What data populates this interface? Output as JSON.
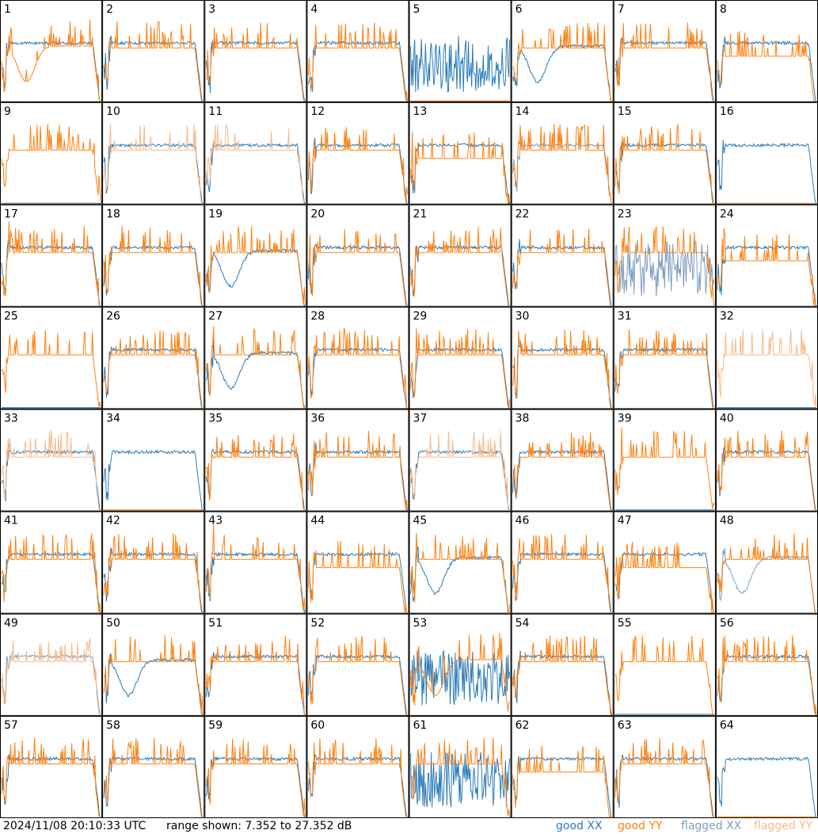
{
  "chart_data": {
    "type": "line",
    "layout_description": "8x8 grid of small spectrum panels, one per antenna/tile numbered 1-64",
    "range": {
      "min_db": 7.352,
      "max_db": 27.352
    },
    "footer": {
      "timestamp": "2024/11/08 20:10:33 UTC",
      "range_text": "range shown: 7.352 to 27.352 dB"
    },
    "legend": [
      {
        "label": "good XX",
        "color": "#2b7bb9"
      },
      {
        "label": "good YY",
        "color": "#ff7f0e"
      },
      {
        "label": "flagged XX",
        "color": "#7f9fbf"
      },
      {
        "label": "flagged YY",
        "color": "#f8b98a"
      }
    ],
    "colors": {
      "good_xx": "#2b7bb9",
      "good_yy": "#ff7f0e",
      "flagged_xx": "#7f9fbf",
      "flagged_yy": "#f8b98a"
    },
    "tiles": [
      {
        "label": "1",
        "xx": "good",
        "yy": "good",
        "xx_shape": "flat",
        "yy_shape": "dip"
      },
      {
        "label": "2",
        "xx": "good",
        "yy": "good",
        "xx_shape": "flat",
        "yy_shape": "spiky"
      },
      {
        "label": "3",
        "xx": "good",
        "yy": "good",
        "xx_shape": "flat",
        "yy_shape": "spiky"
      },
      {
        "label": "4",
        "xx": "good",
        "yy": "good",
        "xx_shape": "flat",
        "yy_shape": "spiky"
      },
      {
        "label": "5",
        "xx": "good",
        "yy": "good",
        "xx_shape": "noisy",
        "yy_shape": "dead"
      },
      {
        "label": "6",
        "xx": "good",
        "yy": "good",
        "xx_shape": "dip",
        "yy_shape": "spiky"
      },
      {
        "label": "7",
        "xx": "good",
        "yy": "good",
        "xx_shape": "flat",
        "yy_shape": "spiky"
      },
      {
        "label": "8",
        "xx": "good",
        "yy": "good",
        "xx_shape": "flat",
        "yy_shape": "low"
      },
      {
        "label": "9",
        "xx": "flagged",
        "yy": "good",
        "xx_shape": "dead",
        "yy_shape": "spiky"
      },
      {
        "label": "10",
        "xx": "good",
        "yy": "flagged",
        "xx_shape": "flat",
        "yy_shape": "spiky"
      },
      {
        "label": "11",
        "xx": "good",
        "yy": "flagged",
        "xx_shape": "flat",
        "yy_shape": "spiky"
      },
      {
        "label": "12",
        "xx": "good",
        "yy": "good",
        "xx_shape": "flat",
        "yy_shape": "spiky"
      },
      {
        "label": "13",
        "xx": "good",
        "yy": "good",
        "xx_shape": "flat",
        "yy_shape": "low"
      },
      {
        "label": "14",
        "xx": "flagged",
        "yy": "good",
        "xx_shape": "flat",
        "yy_shape": "spiky"
      },
      {
        "label": "15",
        "xx": "good",
        "yy": "good",
        "xx_shape": "flat",
        "yy_shape": "spiky"
      },
      {
        "label": "16",
        "xx": "good",
        "yy": "flagged",
        "xx_shape": "flat",
        "yy_shape": "dead"
      },
      {
        "label": "17",
        "xx": "good",
        "yy": "good",
        "xx_shape": "flat",
        "yy_shape": "spiky"
      },
      {
        "label": "18",
        "xx": "good",
        "yy": "good",
        "xx_shape": "flat",
        "yy_shape": "spiky"
      },
      {
        "label": "19",
        "xx": "good",
        "yy": "good",
        "xx_shape": "dip",
        "yy_shape": "spiky"
      },
      {
        "label": "20",
        "xx": "good",
        "yy": "good",
        "xx_shape": "flat",
        "yy_shape": "spiky"
      },
      {
        "label": "21",
        "xx": "good",
        "yy": "good",
        "xx_shape": "flat",
        "yy_shape": "spiky"
      },
      {
        "label": "22",
        "xx": "good",
        "yy": "good",
        "xx_shape": "flat",
        "yy_shape": "spiky"
      },
      {
        "label": "23",
        "xx": "flagged",
        "yy": "good",
        "xx_shape": "noisy",
        "yy_shape": "spiky"
      },
      {
        "label": "24",
        "xx": "good",
        "yy": "good",
        "xx_shape": "flat",
        "yy_shape": "low"
      },
      {
        "label": "25",
        "xx": "good",
        "yy": "good",
        "xx_shape": "dead",
        "yy_shape": "spiky"
      },
      {
        "label": "26",
        "xx": "good",
        "yy": "good",
        "xx_shape": "flat",
        "yy_shape": "spiky"
      },
      {
        "label": "27",
        "xx": "good",
        "yy": "good",
        "xx_shape": "dip",
        "yy_shape": "spiky"
      },
      {
        "label": "28",
        "xx": "good",
        "yy": "good",
        "xx_shape": "flat",
        "yy_shape": "spiky"
      },
      {
        "label": "29",
        "xx": "good",
        "yy": "good",
        "xx_shape": "flat",
        "yy_shape": "spiky"
      },
      {
        "label": "30",
        "xx": "good",
        "yy": "good",
        "xx_shape": "flat",
        "yy_shape": "spiky"
      },
      {
        "label": "31",
        "xx": "good",
        "yy": "good",
        "xx_shape": "flat",
        "yy_shape": "spiky"
      },
      {
        "label": "32",
        "xx": "good",
        "yy": "flagged",
        "xx_shape": "dead",
        "yy_shape": "spiky"
      },
      {
        "label": "33",
        "xx": "good",
        "yy": "flagged",
        "xx_shape": "flat",
        "yy_shape": "spiky"
      },
      {
        "label": "34",
        "xx": "good",
        "yy": "good",
        "xx_shape": "flat",
        "yy_shape": "dead"
      },
      {
        "label": "35",
        "xx": "good",
        "yy": "good",
        "xx_shape": "flat",
        "yy_shape": "spiky"
      },
      {
        "label": "36",
        "xx": "good",
        "yy": "good",
        "xx_shape": "flat",
        "yy_shape": "spiky"
      },
      {
        "label": "37",
        "xx": "good",
        "yy": "flagged",
        "xx_shape": "flat",
        "yy_shape": "spiky"
      },
      {
        "label": "38",
        "xx": "good",
        "yy": "good",
        "xx_shape": "flat",
        "yy_shape": "spiky"
      },
      {
        "label": "39",
        "xx": "good",
        "yy": "good",
        "xx_shape": "dead",
        "yy_shape": "spiky"
      },
      {
        "label": "40",
        "xx": "good",
        "yy": "good",
        "xx_shape": "flat",
        "yy_shape": "spiky"
      },
      {
        "label": "41",
        "xx": "good",
        "yy": "good",
        "xx_shape": "flat",
        "yy_shape": "spiky"
      },
      {
        "label": "42",
        "xx": "good",
        "yy": "good",
        "xx_shape": "flat",
        "yy_shape": "spiky"
      },
      {
        "label": "43",
        "xx": "good",
        "yy": "good",
        "xx_shape": "flat",
        "yy_shape": "spiky"
      },
      {
        "label": "44",
        "xx": "good",
        "yy": "good",
        "xx_shape": "flat",
        "yy_shape": "low"
      },
      {
        "label": "45",
        "xx": "good",
        "yy": "good",
        "xx_shape": "dip",
        "yy_shape": "spiky"
      },
      {
        "label": "46",
        "xx": "good",
        "yy": "good",
        "xx_shape": "flat",
        "yy_shape": "spiky"
      },
      {
        "label": "47",
        "xx": "good",
        "yy": "good",
        "xx_shape": "flat",
        "yy_shape": "low"
      },
      {
        "label": "48",
        "xx": "flagged",
        "yy": "good",
        "xx_shape": "dip",
        "yy_shape": "spiky"
      },
      {
        "label": "49",
        "xx": "flagged",
        "yy": "flagged",
        "xx_shape": "flat",
        "yy_shape": "spiky"
      },
      {
        "label": "50",
        "xx": "good",
        "yy": "good",
        "xx_shape": "dip",
        "yy_shape": "spiky"
      },
      {
        "label": "51",
        "xx": "good",
        "yy": "good",
        "xx_shape": "flat",
        "yy_shape": "spiky"
      },
      {
        "label": "52",
        "xx": "good",
        "yy": "good",
        "xx_shape": "flat",
        "yy_shape": "spiky"
      },
      {
        "label": "53",
        "xx": "good",
        "yy": "good",
        "xx_shape": "noisy",
        "yy_shape": "dip"
      },
      {
        "label": "54",
        "xx": "good",
        "yy": "good",
        "xx_shape": "flat",
        "yy_shape": "spiky"
      },
      {
        "label": "55",
        "xx": "good",
        "yy": "good",
        "xx_shape": "dead",
        "yy_shape": "spiky"
      },
      {
        "label": "56",
        "xx": "good",
        "yy": "good",
        "xx_shape": "flat",
        "yy_shape": "spiky"
      },
      {
        "label": "57",
        "xx": "good",
        "yy": "good",
        "xx_shape": "flat",
        "yy_shape": "spiky"
      },
      {
        "label": "58",
        "xx": "good",
        "yy": "good",
        "xx_shape": "flat",
        "yy_shape": "spiky"
      },
      {
        "label": "59",
        "xx": "good",
        "yy": "good",
        "xx_shape": "flat",
        "yy_shape": "spiky"
      },
      {
        "label": "60",
        "xx": "good",
        "yy": "good",
        "xx_shape": "flat",
        "yy_shape": "spiky"
      },
      {
        "label": "61",
        "xx": "good",
        "yy": "good",
        "xx_shape": "noisy",
        "yy_shape": "spiky"
      },
      {
        "label": "62",
        "xx": "good",
        "yy": "good",
        "xx_shape": "flat",
        "yy_shape": "low"
      },
      {
        "label": "63",
        "xx": "good",
        "yy": "good",
        "xx_shape": "flat",
        "yy_shape": "spiky"
      },
      {
        "label": "64",
        "xx": "good",
        "yy": "good",
        "xx_shape": "flat",
        "yy_shape": "dead"
      }
    ]
  }
}
